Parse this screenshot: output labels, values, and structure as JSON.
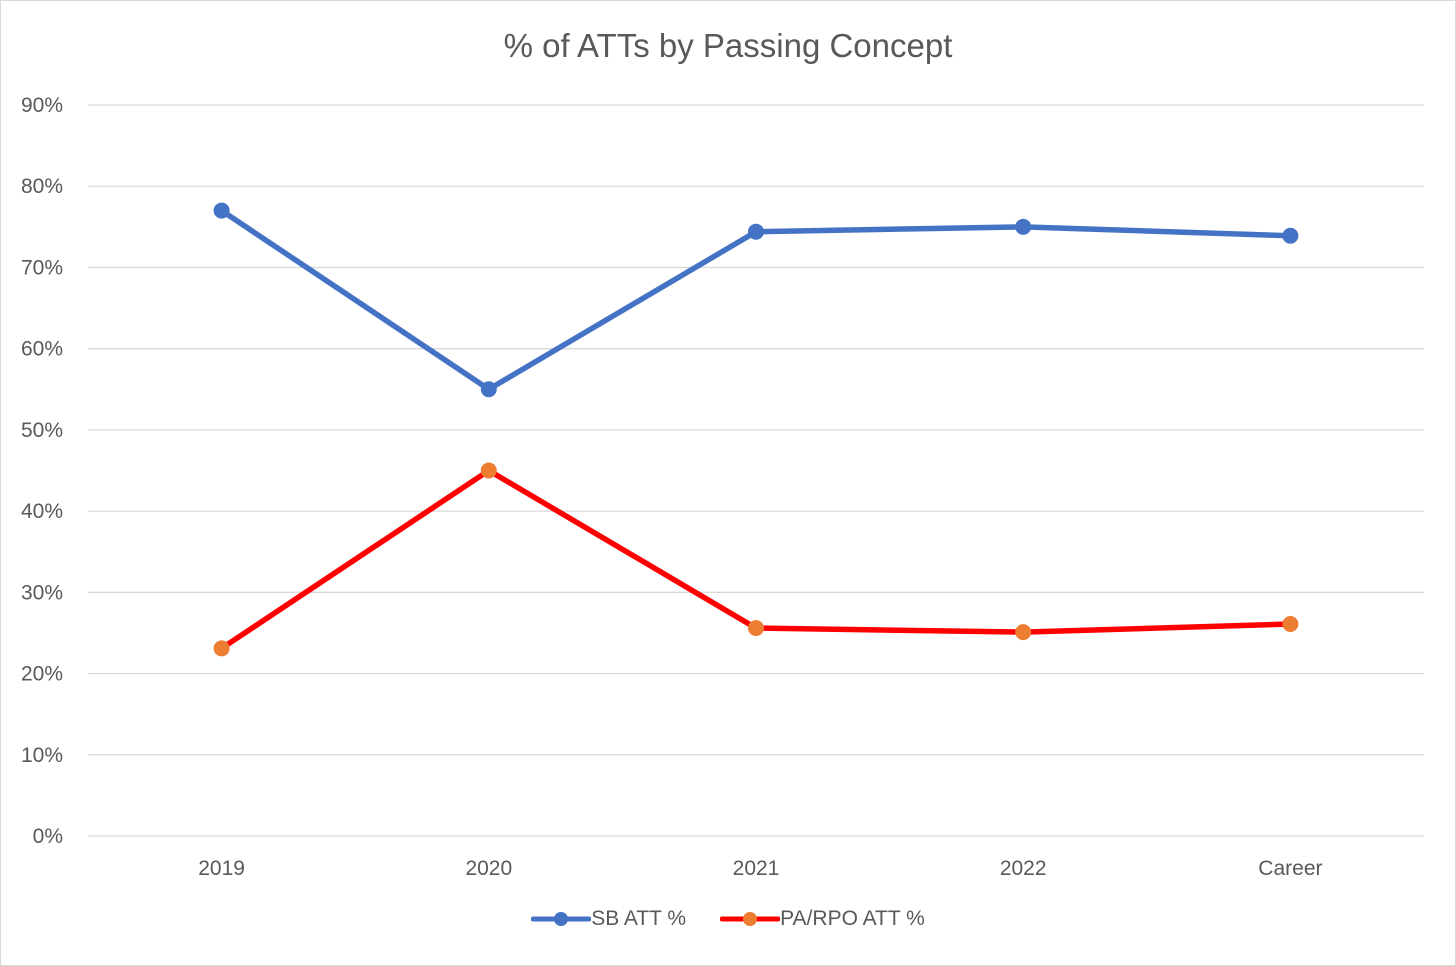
{
  "chart_data": {
    "type": "line",
    "title": "% of ATTs by Passing Concept",
    "xlabel": "",
    "ylabel": "",
    "categories": [
      "2019",
      "2020",
      "2021",
      "2022",
      "Career"
    ],
    "y_tick_labels": [
      "0%",
      "10%",
      "20%",
      "30%",
      "40%",
      "50%",
      "60%",
      "70%",
      "80%",
      "90%"
    ],
    "ylim": [
      0,
      0.9
    ],
    "y_format": "percent",
    "grid": true,
    "legend_position": "bottom",
    "series": [
      {
        "name": "SB ATT %",
        "values": [
          0.77,
          0.55,
          0.744,
          0.75,
          0.739
        ],
        "line_color": "#4472C4",
        "marker_color": "#4472C4"
      },
      {
        "name": "PA/RPO ATT %",
        "values": [
          0.231,
          0.45,
          0.256,
          0.251,
          0.261
        ],
        "line_color": "#FF0000",
        "marker_color": "#ED7D31"
      }
    ]
  }
}
